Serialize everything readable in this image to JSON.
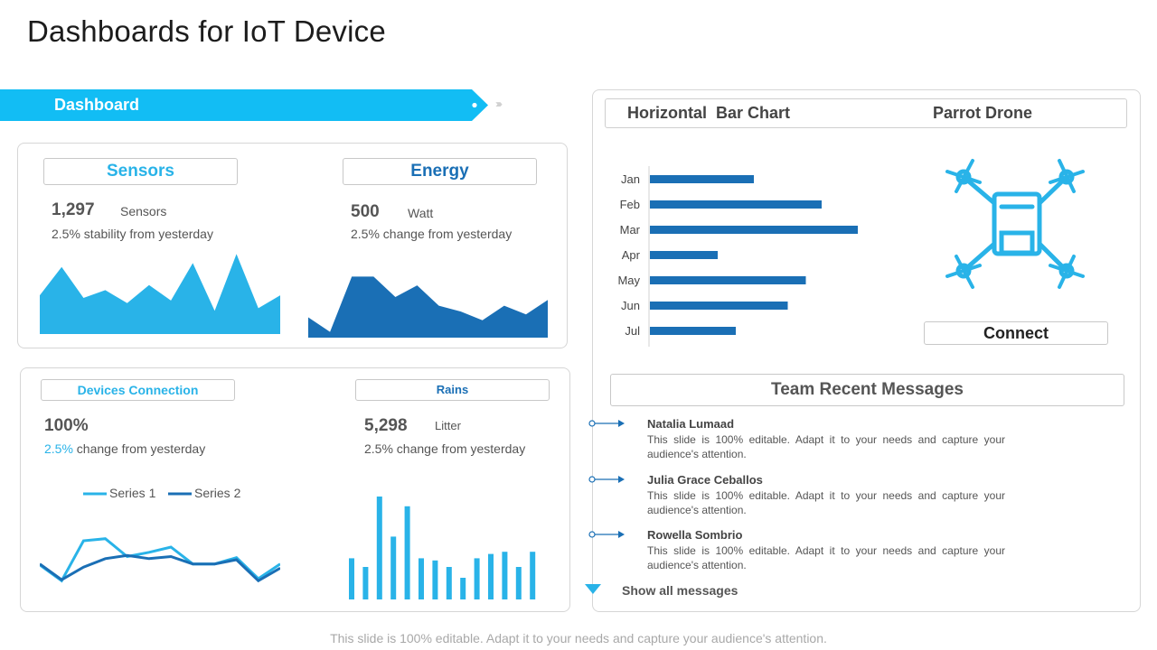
{
  "title": "Dashboards for IoT Device",
  "colors": {
    "light_blue": "#29b3e8",
    "dark_blue": "#1a6fb5",
    "mid_blue": "#2196d8"
  },
  "ribbon": {
    "label": "Dashboard",
    "chevrons": "›››››"
  },
  "sensors": {
    "label": "Sensors",
    "value": "1,297",
    "unit": "Sensors",
    "subtext": "2.5% stability from yesterday",
    "chart_data": {
      "type": "area",
      "values": [
        30,
        52,
        28,
        34,
        24,
        38,
        26,
        55,
        18,
        62,
        20,
        30
      ]
    }
  },
  "energy": {
    "label": "Energy",
    "value": "500",
    "unit": "Watt",
    "subtext": "2.5% change from yesterday",
    "chart_data": {
      "type": "area",
      "values": [
        14,
        4,
        42,
        42,
        28,
        36,
        22,
        18,
        12,
        22,
        16,
        26
      ]
    }
  },
  "devices": {
    "label": "Devices Connection",
    "value": "100%",
    "sub_pct": "2.5%",
    "sub_rest": " change from yesterday",
    "chart_data": {
      "type": "line",
      "series": [
        {
          "name": "Series 1",
          "values": [
            3.5,
            2.0,
            5.8,
            6.0,
            4.3,
            4.7,
            5.2,
            3.6,
            3.6,
            4.2,
            2.2,
            3.6
          ]
        },
        {
          "name": "Series 2",
          "values": [
            3.6,
            2.1,
            3.3,
            4.1,
            4.4,
            4.1,
            4.3,
            3.6,
            3.6,
            4.0,
            2.0,
            3.2
          ]
        }
      ]
    }
  },
  "rains": {
    "label": "Rains",
    "value": "5,298",
    "unit": "Litter",
    "subtext": "2.5% change from yesterday",
    "chart_data": {
      "type": "bar",
      "values": [
        38,
        30,
        95,
        58,
        86,
        38,
        36,
        30,
        20,
        38,
        42,
        44,
        30,
        44
      ]
    }
  },
  "bar_chart": {
    "title": "Horizontal  Bar Chart",
    "chart_data": {
      "type": "bar",
      "orientation": "horizontal",
      "categories": [
        "Jan",
        "Feb",
        "Mar",
        "Apr",
        "May",
        "Jun",
        "Jul"
      ],
      "values": [
        46,
        76,
        92,
        30,
        69,
        61,
        38
      ]
    }
  },
  "drone": {
    "title": "Parrot Drone",
    "icon": "drone-icon",
    "connect_label": "Connect"
  },
  "team": {
    "title": "Team Recent Messages",
    "messages": [
      {
        "name": "Natalia Lumaad",
        "text": "This slide is 100% editable. Adapt it to your needs and capture your audience's attention."
      },
      {
        "name": "Julia Grace Ceballos",
        "text": "This slide is 100% editable. Adapt it to your needs and capture your audience's attention."
      },
      {
        "name": "Rowella Sombrio",
        "text": "This slide is 100% editable. Adapt it to your needs and capture your audience's attention."
      }
    ],
    "show_all": "Show all messages"
  },
  "footer": "This slide is 100% editable. Adapt it to your needs and capture your audience's attention."
}
